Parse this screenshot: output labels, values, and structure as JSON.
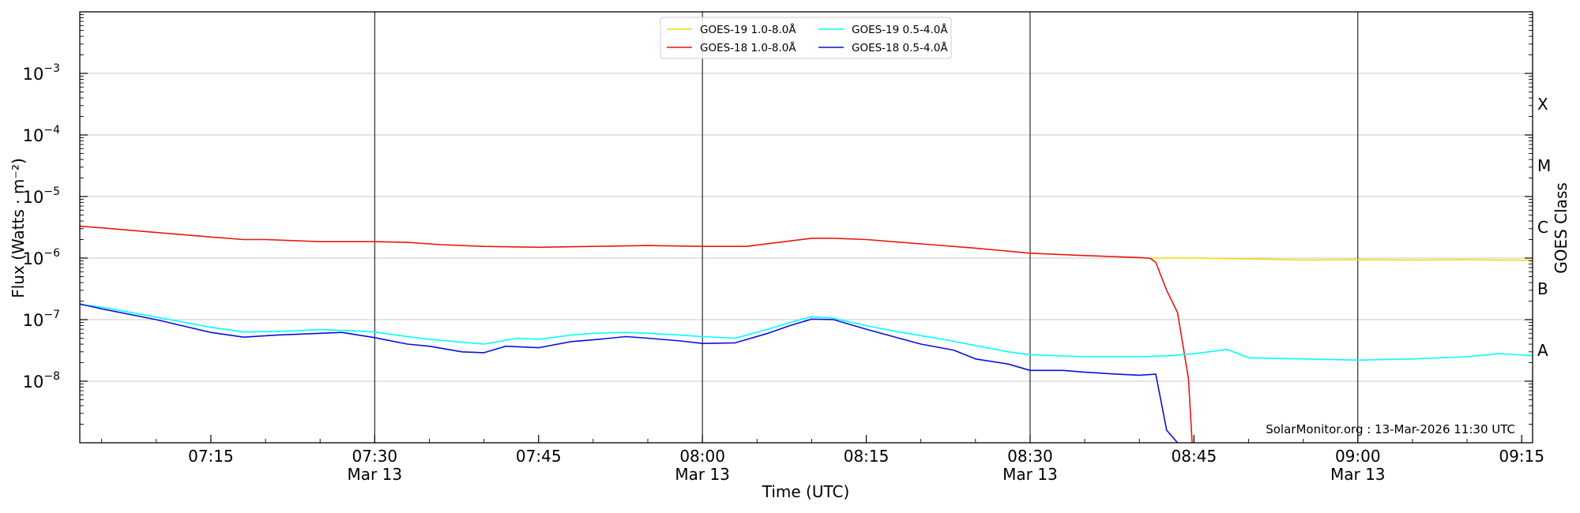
{
  "chart_data": {
    "type": "line",
    "ylabel": "Flux (Watts · m⁻²)",
    "xlabel": "Time (UTC)",
    "right_ylabel": "GOES Class",
    "y_scale": "log",
    "ylim": [
      1e-09,
      0.01
    ],
    "y_ticks": [
      {
        "value": 1e-08,
        "base": "10",
        "exp": "−8"
      },
      {
        "value": 1e-07,
        "base": "10",
        "exp": "−7"
      },
      {
        "value": 1e-06,
        "base": "10",
        "exp": "−6"
      },
      {
        "value": 1e-05,
        "base": "10",
        "exp": "−5"
      },
      {
        "value": 0.0001,
        "base": "10",
        "exp": "−4"
      },
      {
        "value": 0.001,
        "base": "10",
        "exp": "−3"
      }
    ],
    "xlim": [
      "07:03",
      "09:16"
    ],
    "x_ticks": [
      {
        "time": "07:15",
        "label": "07:15",
        "sublabel": ""
      },
      {
        "time": "07:30",
        "label": "07:30",
        "sublabel": "Mar 13"
      },
      {
        "time": "07:45",
        "label": "07:45",
        "sublabel": ""
      },
      {
        "time": "08:00",
        "label": "08:00",
        "sublabel": "Mar 13"
      },
      {
        "time": "08:15",
        "label": "08:15",
        "sublabel": ""
      },
      {
        "time": "08:30",
        "label": "08:30",
        "sublabel": "Mar 13"
      },
      {
        "time": "08:45",
        "label": "08:45",
        "sublabel": ""
      },
      {
        "time": "09:00",
        "label": "09:00",
        "sublabel": "Mar 13"
      },
      {
        "time": "09:15",
        "label": "09:15",
        "sublabel": ""
      }
    ],
    "vertical_lines": [
      "07:30",
      "08:00",
      "08:30",
      "09:00"
    ],
    "goes_classes": [
      {
        "label": "A",
        "value": 3.16e-08
      },
      {
        "label": "B",
        "value": 3.16e-07
      },
      {
        "label": "C",
        "value": 3.16e-06
      },
      {
        "label": "M",
        "value": 3.16e-05
      },
      {
        "label": "X",
        "value": 0.000316
      }
    ],
    "grid": true,
    "legend_position": "top-center",
    "annotation": "SolarMonitor.org : 13-Mar-2026 11:30 UTC",
    "series": [
      {
        "name": "GOES-19 1.0-8.0Å",
        "color": "#ffd700",
        "points": [
          [
            "08:41",
            1e-06
          ],
          [
            "08:45",
            1e-06
          ],
          [
            "08:50",
            9.7e-07
          ],
          [
            "08:55",
            9.3e-07
          ],
          [
            "09:00",
            9.4e-07
          ],
          [
            "09:05",
            9.3e-07
          ],
          [
            "09:10",
            9.4e-07
          ],
          [
            "09:16",
            9.2e-07
          ]
        ]
      },
      {
        "name": "GOES-18 1.0-8.0Å",
        "color": "#e8170d",
        "points": [
          [
            "07:03",
            3.3e-06
          ],
          [
            "07:05",
            3.1e-06
          ],
          [
            "07:10",
            2.6e-06
          ],
          [
            "07:15",
            2.2e-06
          ],
          [
            "07:18",
            2e-06
          ],
          [
            "07:20",
            2e-06
          ],
          [
            "07:25",
            1.85e-06
          ],
          [
            "07:30",
            1.85e-06
          ],
          [
            "07:33",
            1.8e-06
          ],
          [
            "07:36",
            1.65e-06
          ],
          [
            "07:40",
            1.55e-06
          ],
          [
            "07:45",
            1.5e-06
          ],
          [
            "07:50",
            1.55e-06
          ],
          [
            "07:55",
            1.6e-06
          ],
          [
            "08:00",
            1.55e-06
          ],
          [
            "08:04",
            1.55e-06
          ],
          [
            "08:07",
            1.8e-06
          ],
          [
            "08:10",
            2.1e-06
          ],
          [
            "08:12",
            2.1e-06
          ],
          [
            "08:15",
            2e-06
          ],
          [
            "08:20",
            1.7e-06
          ],
          [
            "08:25",
            1.45e-06
          ],
          [
            "08:30",
            1.2e-06
          ],
          [
            "08:35",
            1.1e-06
          ],
          [
            "08:40",
            1.02e-06
          ],
          [
            "08:41",
            9.9e-07
          ],
          [
            "08:41.5",
            8.5e-07
          ],
          [
            "08:42.5",
            3e-07
          ],
          [
            "08:43.5",
            1.3e-07
          ],
          [
            "08:44.5",
            1.1e-08
          ],
          [
            "08:45",
            3e-10
          ]
        ]
      },
      {
        "name": "GOES-19 0.5-4.0Å",
        "color": "#00ffff",
        "points": [
          [
            "07:03",
            1.75e-07
          ],
          [
            "07:05",
            1.6e-07
          ],
          [
            "07:10",
            1.1e-07
          ],
          [
            "07:15",
            7.5e-08
          ],
          [
            "07:18",
            6.3e-08
          ],
          [
            "07:21",
            6.4e-08
          ],
          [
            "07:25",
            6.9e-08
          ],
          [
            "07:28",
            6.6e-08
          ],
          [
            "07:30",
            6.3e-08
          ],
          [
            "07:33",
            5.3e-08
          ],
          [
            "07:35",
            4.8e-08
          ],
          [
            "07:38",
            4.3e-08
          ],
          [
            "07:40",
            4e-08
          ],
          [
            "07:43",
            5e-08
          ],
          [
            "07:45",
            4.8e-08
          ],
          [
            "07:48",
            5.6e-08
          ],
          [
            "07:50",
            6e-08
          ],
          [
            "07:53",
            6.2e-08
          ],
          [
            "07:55",
            6e-08
          ],
          [
            "07:58",
            5.6e-08
          ],
          [
            "08:00",
            5.3e-08
          ],
          [
            "08:03",
            5e-08
          ],
          [
            "08:06",
            7e-08
          ],
          [
            "08:08",
            9e-08
          ],
          [
            "08:10",
            1.12e-07
          ],
          [
            "08:12",
            1.05e-07
          ],
          [
            "08:15",
            8e-08
          ],
          [
            "08:18",
            6.3e-08
          ],
          [
            "08:22",
            4.8e-08
          ],
          [
            "08:25",
            3.8e-08
          ],
          [
            "08:28",
            3e-08
          ],
          [
            "08:30",
            2.7e-08
          ],
          [
            "08:35",
            2.5e-08
          ],
          [
            "08:40",
            2.5e-08
          ],
          [
            "08:43",
            2.6e-08
          ],
          [
            "08:45",
            2.8e-08
          ],
          [
            "08:47",
            3.1e-08
          ],
          [
            "08:48",
            3.3e-08
          ],
          [
            "08:50",
            2.4e-08
          ],
          [
            "08:55",
            2.3e-08
          ],
          [
            "09:00",
            2.2e-08
          ],
          [
            "09:05",
            2.3e-08
          ],
          [
            "09:10",
            2.5e-08
          ],
          [
            "09:13",
            2.8e-08
          ],
          [
            "09:16",
            2.6e-08
          ]
        ]
      },
      {
        "name": "GOES-18 0.5-4.0Å",
        "color": "#0a10d8",
        "points": [
          [
            "07:03",
            1.8e-07
          ],
          [
            "07:05",
            1.5e-07
          ],
          [
            "07:10",
            1e-07
          ],
          [
            "07:15",
            6.2e-08
          ],
          [
            "07:18",
            5.2e-08
          ],
          [
            "07:21",
            5.6e-08
          ],
          [
            "07:25",
            6e-08
          ],
          [
            "07:27",
            6.2e-08
          ],
          [
            "07:30",
            5.1e-08
          ],
          [
            "07:33",
            4e-08
          ],
          [
            "07:35",
            3.7e-08
          ],
          [
            "07:38",
            3e-08
          ],
          [
            "07:40",
            2.9e-08
          ],
          [
            "07:42",
            3.7e-08
          ],
          [
            "07:45",
            3.5e-08
          ],
          [
            "07:48",
            4.4e-08
          ],
          [
            "07:50",
            4.7e-08
          ],
          [
            "07:53",
            5.3e-08
          ],
          [
            "07:55",
            5e-08
          ],
          [
            "07:58",
            4.5e-08
          ],
          [
            "08:00",
            4.1e-08
          ],
          [
            "08:03",
            4.2e-08
          ],
          [
            "08:06",
            6e-08
          ],
          [
            "08:08",
            8e-08
          ],
          [
            "08:10",
            1.02e-07
          ],
          [
            "08:12",
            1e-07
          ],
          [
            "08:15",
            7e-08
          ],
          [
            "08:18",
            5e-08
          ],
          [
            "08:20",
            4e-08
          ],
          [
            "08:23",
            3.2e-08
          ],
          [
            "08:25",
            2.3e-08
          ],
          [
            "08:28",
            1.9e-08
          ],
          [
            "08:30",
            1.5e-08
          ],
          [
            "08:33",
            1.5e-08
          ],
          [
            "08:35",
            1.4e-08
          ],
          [
            "08:38",
            1.3e-08
          ],
          [
            "08:40",
            1.25e-08
          ],
          [
            "08:41.5",
            1.3e-08
          ],
          [
            "08:42.5",
            1.6e-09
          ],
          [
            "08:43.5",
            1e-09
          ],
          [
            "08:44.5",
            6e-10
          ]
        ]
      }
    ]
  }
}
